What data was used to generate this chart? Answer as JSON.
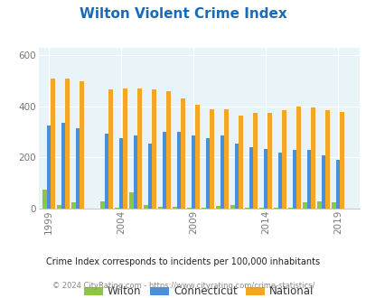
{
  "title": "Wilton Violent Crime Index",
  "years": [
    1999,
    2000,
    2001,
    2003,
    2004,
    2005,
    2006,
    2007,
    2008,
    2009,
    2010,
    2011,
    2012,
    2013,
    2014,
    2015,
    2016,
    2017,
    2018,
    2019
  ],
  "wilton": [
    75,
    15,
    25,
    28,
    5,
    65,
    15,
    8,
    8,
    5,
    5,
    12,
    15,
    3,
    2,
    5,
    2,
    25,
    30,
    25
  ],
  "connecticut": [
    325,
    335,
    315,
    295,
    275,
    285,
    255,
    300,
    300,
    285,
    275,
    285,
    255,
    240,
    235,
    220,
    230,
    230,
    210,
    190
  ],
  "national": [
    510,
    510,
    500,
    465,
    470,
    470,
    465,
    460,
    430,
    405,
    390,
    390,
    365,
    375,
    375,
    385,
    400,
    395,
    385,
    380
  ],
  "xtick_years": [
    1999,
    2004,
    2009,
    2014,
    2019
  ],
  "bar_width": 0.28,
  "wilton_color": "#8dc63f",
  "connecticut_color": "#4a90d9",
  "national_color": "#f5a623",
  "bg_color": "#e8f4f8",
  "ylim": [
    0,
    630
  ],
  "yticks": [
    0,
    200,
    400,
    600
  ],
  "title_color": "#1a6ab5",
  "title_fontsize": 11,
  "legend_fontsize": 8.5,
  "footnote1": "Crime Index corresponds to incidents per 100,000 inhabitants",
  "footnote2": "© 2024 CityRating.com - https://www.cityrating.com/crime-statistics/",
  "footnote1_color": "#222222",
  "footnote2_color": "#888888",
  "xlim_left": 1998.3,
  "xlim_right": 2020.5
}
